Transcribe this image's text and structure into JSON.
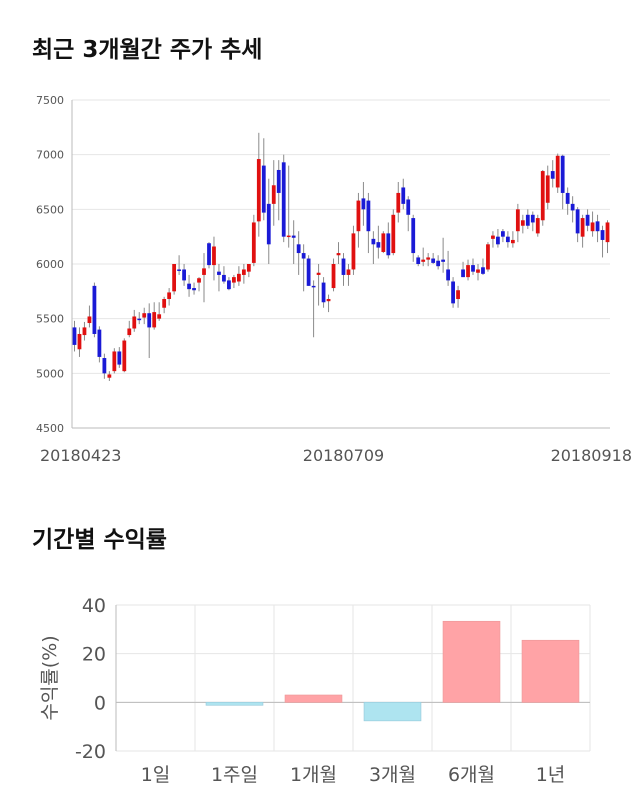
{
  "section1_title": "최근 3개월간 주가 추세",
  "section2_title": "기간별 수익률",
  "colors": {
    "up": "#e01010",
    "down": "#1a1ad6",
    "wick": "#8a8a8a",
    "grid": "#e6e6e6",
    "positive_bar": "#ffa3a6",
    "negative_bar": "#aee4f0"
  },
  "chart_data": [
    {
      "type": "candlestick",
      "ylim": [
        4500,
        7500
      ],
      "yticks": [
        4500,
        5000,
        5500,
        6000,
        6500,
        7000,
        7500
      ],
      "xtick_labels": [
        "20180423",
        "20180709",
        "20180918"
      ],
      "xtick_index": [
        0,
        54,
        103
      ],
      "candles": [
        [
          5420,
          5480,
          5200,
          5260
        ],
        [
          5220,
          5420,
          5150,
          5360
        ],
        [
          5350,
          5470,
          5300,
          5420
        ],
        [
          5460,
          5620,
          5420,
          5520
        ],
        [
          5800,
          5830,
          5330,
          5360
        ],
        [
          5400,
          5430,
          5100,
          5150
        ],
        [
          5140,
          5180,
          4950,
          5000
        ],
        [
          4960,
          5020,
          4930,
          4990
        ],
        [
          5020,
          5230,
          5000,
          5200
        ],
        [
          5200,
          5240,
          5050,
          5080
        ],
        [
          5020,
          5320,
          5010,
          5300
        ],
        [
          5350,
          5480,
          5330,
          5410
        ],
        [
          5410,
          5580,
          5380,
          5520
        ],
        [
          5500,
          5560,
          5450,
          5490
        ],
        [
          5510,
          5600,
          5450,
          5550
        ],
        [
          5550,
          5640,
          5140,
          5420
        ],
        [
          5420,
          5650,
          5400,
          5560
        ],
        [
          5500,
          5650,
          5480,
          5540
        ],
        [
          5600,
          5700,
          5550,
          5680
        ],
        [
          5680,
          5780,
          5620,
          5740
        ],
        [
          5750,
          6000,
          5720,
          6000
        ],
        [
          5950,
          6080,
          5900,
          5940
        ],
        [
          5950,
          6000,
          5800,
          5850
        ],
        [
          5820,
          5900,
          5700,
          5770
        ],
        [
          5780,
          5830,
          5720,
          5760
        ],
        [
          5830,
          5880,
          5750,
          5870
        ],
        [
          5900,
          6100,
          5650,
          5960
        ],
        [
          6190,
          6200,
          5960,
          5990
        ],
        [
          5990,
          6250,
          5850,
          6160
        ],
        [
          5930,
          6000,
          5750,
          5900
        ],
        [
          5900,
          5980,
          5820,
          5840
        ],
        [
          5850,
          5880,
          5760,
          5770
        ],
        [
          5830,
          5900,
          5780,
          5880
        ],
        [
          5840,
          5980,
          5800,
          5910
        ],
        [
          5900,
          6000,
          5820,
          5950
        ],
        [
          5930,
          6000,
          5880,
          6000
        ],
        [
          6010,
          6450,
          5980,
          6380
        ],
        [
          6390,
          7200,
          6250,
          6960
        ],
        [
          6900,
          7150,
          6400,
          6470
        ],
        [
          6550,
          6780,
          6000,
          6180
        ],
        [
          6550,
          6950,
          6350,
          6720
        ],
        [
          6860,
          6950,
          6400,
          6650
        ],
        [
          6930,
          7000,
          6200,
          6250
        ],
        [
          6250,
          6900,
          6150,
          6260
        ],
        [
          6260,
          6400,
          6000,
          6240
        ],
        [
          6180,
          6300,
          5900,
          6100
        ],
        [
          6100,
          6180,
          5750,
          6050
        ],
        [
          6050,
          6080,
          5800,
          5800
        ],
        [
          5800,
          5850,
          5330,
          5790
        ],
        [
          5900,
          6000,
          5620,
          5920
        ],
        [
          5830,
          5880,
          5600,
          5650
        ],
        [
          5660,
          5720,
          5560,
          5680
        ],
        [
          5780,
          6050,
          5750,
          6000
        ],
        [
          6080,
          6200,
          6000,
          6100
        ],
        [
          6050,
          6100,
          5800,
          5900
        ],
        [
          5900,
          6000,
          5800,
          5950
        ],
        [
          5950,
          6350,
          5900,
          6280
        ],
        [
          6300,
          6650,
          6150,
          6580
        ],
        [
          6600,
          6750,
          6350,
          6500
        ],
        [
          6580,
          6650,
          6100,
          6300
        ],
        [
          6230,
          6300,
          6000,
          6180
        ],
        [
          6200,
          6350,
          6050,
          6150
        ],
        [
          6110,
          6300,
          6100,
          6280
        ],
        [
          6280,
          6380,
          6050,
          6080
        ],
        [
          6100,
          6500,
          6080,
          6450
        ],
        [
          6470,
          6750,
          6380,
          6650
        ],
        [
          6700,
          6780,
          6500,
          6550
        ],
        [
          6590,
          6620,
          6300,
          6450
        ],
        [
          6420,
          6450,
          6020,
          6100
        ],
        [
          6060,
          6080,
          5980,
          6000
        ],
        [
          6020,
          6150,
          5980,
          6040
        ],
        [
          6040,
          6100,
          5980,
          6060
        ],
        [
          6050,
          6100,
          6000,
          6010
        ],
        [
          6030,
          6080,
          5950,
          5980
        ],
        [
          6040,
          6240,
          5920,
          6020
        ],
        [
          5950,
          6120,
          5800,
          5850
        ],
        [
          5840,
          5880,
          5600,
          5640
        ],
        [
          5680,
          5800,
          5600,
          5760
        ],
        [
          5950,
          6020,
          5880,
          5880
        ],
        [
          5880,
          6040,
          5850,
          5990
        ],
        [
          5990,
          6050,
          5900,
          5930
        ],
        [
          5920,
          6000,
          5850,
          5950
        ],
        [
          5970,
          6050,
          5900,
          5910
        ],
        [
          5950,
          6200,
          5930,
          6180
        ],
        [
          6230,
          6300,
          6150,
          6260
        ],
        [
          6250,
          6320,
          6150,
          6180
        ],
        [
          6300,
          6320,
          6200,
          6250
        ],
        [
          6250,
          6300,
          6150,
          6200
        ],
        [
          6190,
          6300,
          6150,
          6220
        ],
        [
          6300,
          6550,
          6200,
          6500
        ],
        [
          6350,
          6450,
          6280,
          6400
        ],
        [
          6450,
          6500,
          6320,
          6350
        ],
        [
          6450,
          6480,
          6300,
          6380
        ],
        [
          6280,
          6450,
          6250,
          6420
        ],
        [
          6400,
          6860,
          6350,
          6850
        ],
        [
          6560,
          6900,
          6500,
          6810
        ],
        [
          6850,
          6950,
          6700,
          6780
        ],
        [
          6700,
          7010,
          6650,
          6990
        ],
        [
          6990,
          7000,
          6500,
          6650
        ],
        [
          6650,
          6700,
          6450,
          6550
        ],
        [
          6550,
          6620,
          6380,
          6490
        ],
        [
          6500,
          6520,
          6200,
          6280
        ],
        [
          6250,
          6450,
          6150,
          6420
        ],
        [
          6450,
          6500,
          6300,
          6350
        ],
        [
          6300,
          6480,
          6250,
          6380
        ],
        [
          6390,
          6450,
          6200,
          6300
        ],
        [
          6310,
          6350,
          6060,
          6220
        ],
        [
          6200,
          6400,
          6100,
          6380
        ]
      ]
    },
    {
      "type": "bar",
      "categories": [
        "1일",
        "1주일",
        "1개월",
        "3개월",
        "6개월",
        "1년"
      ],
      "values": [
        0.0,
        -1.2,
        3.0,
        -7.6,
        33.3,
        25.5
      ],
      "ylabel": "수익률(%)",
      "ylim": [
        -20,
        40
      ],
      "yticks": [
        -20,
        0,
        20,
        40
      ]
    }
  ]
}
